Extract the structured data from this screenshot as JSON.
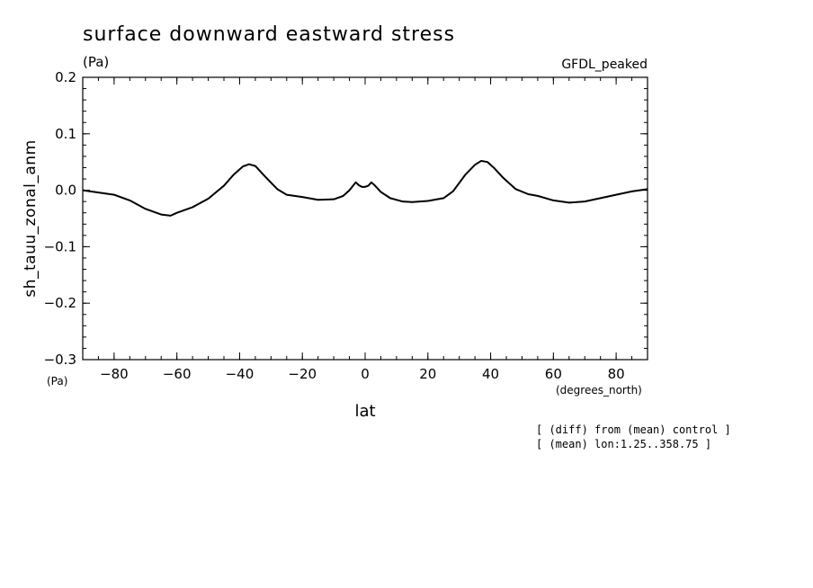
{
  "chart_data": {
    "type": "line",
    "title": "surface downward eastward stress",
    "units_top": "(Pa)",
    "model_label": "GFDL_peaked",
    "ylabel": "sh_tauu_zonal_anm",
    "y_units": "(Pa)",
    "xlabel": "lat",
    "x_units": "(degrees_north)",
    "xlim": [
      -90,
      90
    ],
    "ylim": [
      -0.3,
      0.2
    ],
    "x_ticks": [
      -80,
      -60,
      -40,
      -20,
      0,
      20,
      40,
      60,
      80
    ],
    "x_tick_labels": [
      "−80",
      "−60",
      "−40",
      "−20",
      "0",
      "20",
      "40",
      "60",
      "80"
    ],
    "y_ticks": [
      0.2,
      0.1,
      0.0,
      -0.1,
      -0.2,
      -0.3
    ],
    "y_tick_labels": [
      "0.2",
      "0.1",
      "0.0",
      "−0.1",
      "−0.2",
      "−0.3"
    ],
    "grid": false,
    "series": [
      {
        "x": [
          -90,
          -85,
          -80,
          -75,
          -70,
          -65,
          -62,
          -60,
          -55,
          -50,
          -45,
          -42,
          -39,
          -37,
          -35,
          -32,
          -28,
          -25,
          -20,
          -15,
          -10,
          -7,
          -5,
          -3,
          -2,
          -1,
          0,
          1,
          2,
          3,
          5,
          8,
          12,
          15,
          20,
          25,
          28,
          32,
          35,
          37,
          39,
          41,
          44,
          48,
          52,
          55,
          60,
          65,
          70,
          75,
          80,
          85,
          90
        ],
        "y": [
          0.0,
          -0.004,
          -0.008,
          -0.018,
          -0.033,
          -0.043,
          -0.045,
          -0.04,
          -0.03,
          -0.015,
          0.008,
          0.027,
          0.042,
          0.046,
          0.043,
          0.025,
          0.002,
          -0.008,
          -0.012,
          -0.017,
          -0.016,
          -0.01,
          0.0,
          0.014,
          0.009,
          0.006,
          0.006,
          0.008,
          0.014,
          0.009,
          -0.003,
          -0.014,
          -0.02,
          -0.021,
          -0.019,
          -0.014,
          -0.002,
          0.028,
          0.045,
          0.052,
          0.05,
          0.04,
          0.022,
          0.002,
          -0.007,
          -0.01,
          -0.018,
          -0.022,
          -0.02,
          -0.014,
          -0.008,
          -0.002,
          0.002
        ]
      }
    ]
  },
  "notes": [
    "[ (diff) from (mean) control ]",
    "[ (mean) lon:1.25..358.75 ]"
  ]
}
